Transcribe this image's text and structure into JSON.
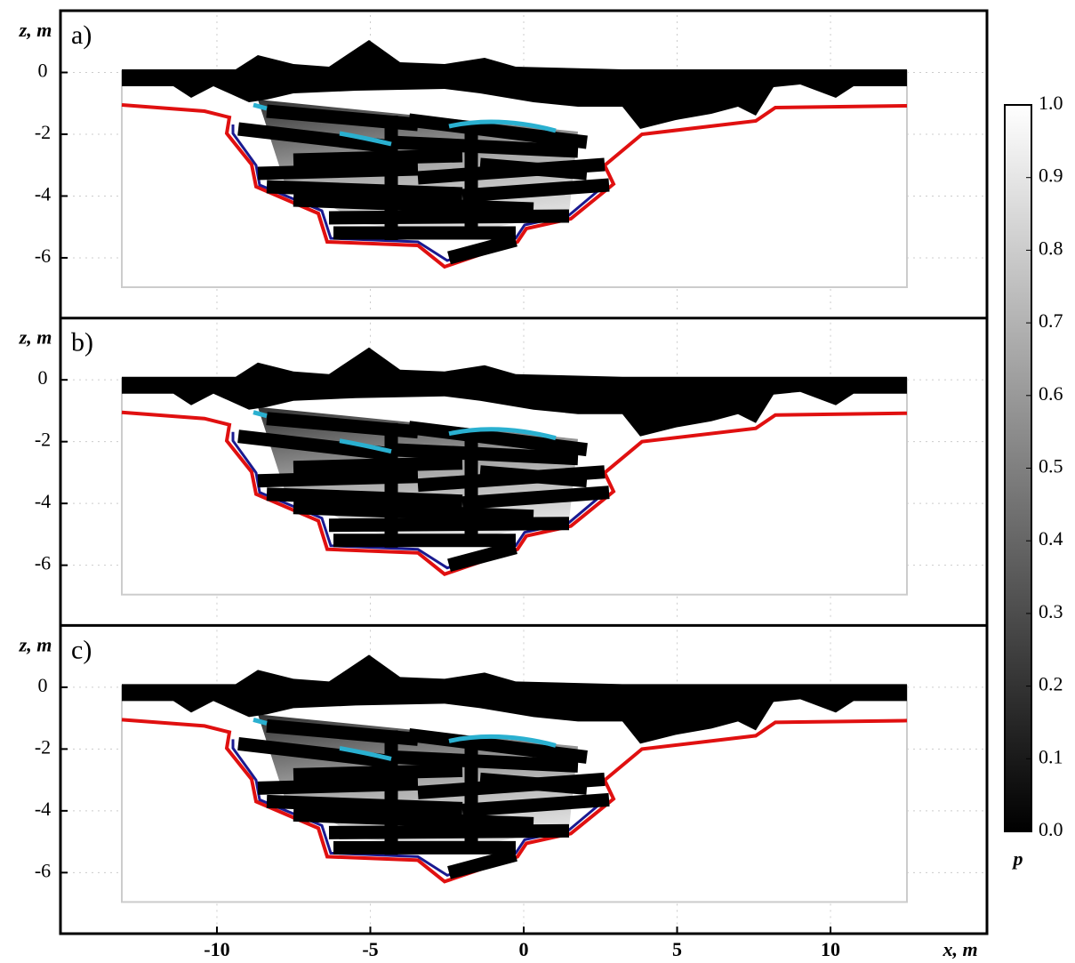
{
  "chart_data": {
    "type": "panels",
    "xlabel": "x, m",
    "ylabel": "z, m",
    "panels": [
      {
        "label": "a)"
      },
      {
        "label": "b)"
      },
      {
        "label": "c)"
      }
    ],
    "xlim": [
      -15.1,
      15.1
    ],
    "xticks": [
      -10,
      -5,
      0,
      5,
      10
    ],
    "ylim": [
      -7.95,
      2
    ],
    "yticks": [
      0,
      -2,
      -4,
      -6
    ],
    "grid": true,
    "colorbar": {
      "label": "p",
      "lim": [
        0,
        1
      ],
      "ticks": [
        {
          "value": 0,
          "label": "0.0"
        },
        0.1,
        0.2,
        0.3,
        0.4,
        0.5,
        0.6,
        0.7,
        0.8,
        0.9,
        {
          "value": 1,
          "label": "1.0"
        }
      ]
    }
  }
}
